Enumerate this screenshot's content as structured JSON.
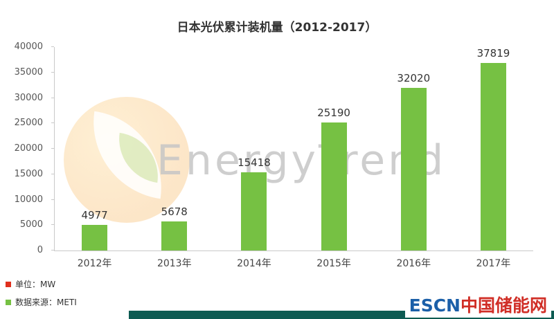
{
  "chart_data": {
    "type": "bar",
    "title": "日本光伏累计装机量（2012-2017）",
    "categories": [
      "2012年",
      "2013年",
      "2014年",
      "2015年",
      "2016年",
      "2017年"
    ],
    "values": [
      4977,
      5678,
      15418,
      25190,
      32020,
      37819
    ],
    "xlabel": "",
    "ylabel": "",
    "ylim": [
      0,
      40000
    ],
    "ytick_step": 5000,
    "bar_color": "#76c143",
    "grid": false,
    "legend_position": "none"
  },
  "watermark": {
    "text": "EnergyTrend"
  },
  "footer": {
    "unit_label": "单位：MW",
    "source_label": "数据来源：METI",
    "unit_bullet_color": "#e0301e",
    "source_bullet_color": "#76c143"
  },
  "branding": {
    "name_en": "ESCN",
    "name_cn": "中国储能网",
    "color_en": "#1b5fa8",
    "color_cn": "#d02e26",
    "strip_color": "#0d5b52"
  }
}
